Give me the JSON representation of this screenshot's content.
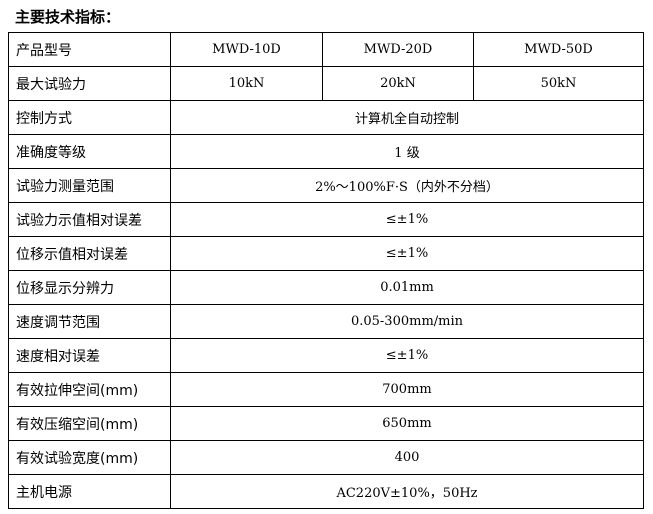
{
  "title": "主要技术指标：",
  "header": {
    "label": "产品型号",
    "models": [
      "MWD-10D",
      "MWD-20D",
      "MWD-50D"
    ]
  },
  "force": {
    "label": "最大试验力",
    "values": [
      "10kN",
      "20kN",
      "50kN"
    ]
  },
  "rows": [
    {
      "label": "控制方式",
      "value": "计算机全自动控制"
    },
    {
      "label": "准确度等级",
      "value": "1 级"
    },
    {
      "label": "试验力测量范围",
      "value": "2%～100%F·S（内外不分档）"
    },
    {
      "label": "试验力示值相对误差",
      "value": "≤±1%"
    },
    {
      "label": "位移示值相对误差",
      "value": "≤±1%"
    },
    {
      "label": "位移显示分辨力",
      "value": "0.01mm"
    },
    {
      "label": "速度调节范围",
      "value": "0.05-300mm/min"
    },
    {
      "label": "速度相对误差",
      "value": "≤±1%"
    },
    {
      "label": "有效拉伸空间(mm)",
      "value": "700mm"
    },
    {
      "label": "有效压缩空间(mm)",
      "value": "650mm"
    },
    {
      "label": "有效试验宽度(mm)",
      "value": "400"
    },
    {
      "label": "主机电源",
      "value": "AC220V±10%，50Hz"
    }
  ]
}
